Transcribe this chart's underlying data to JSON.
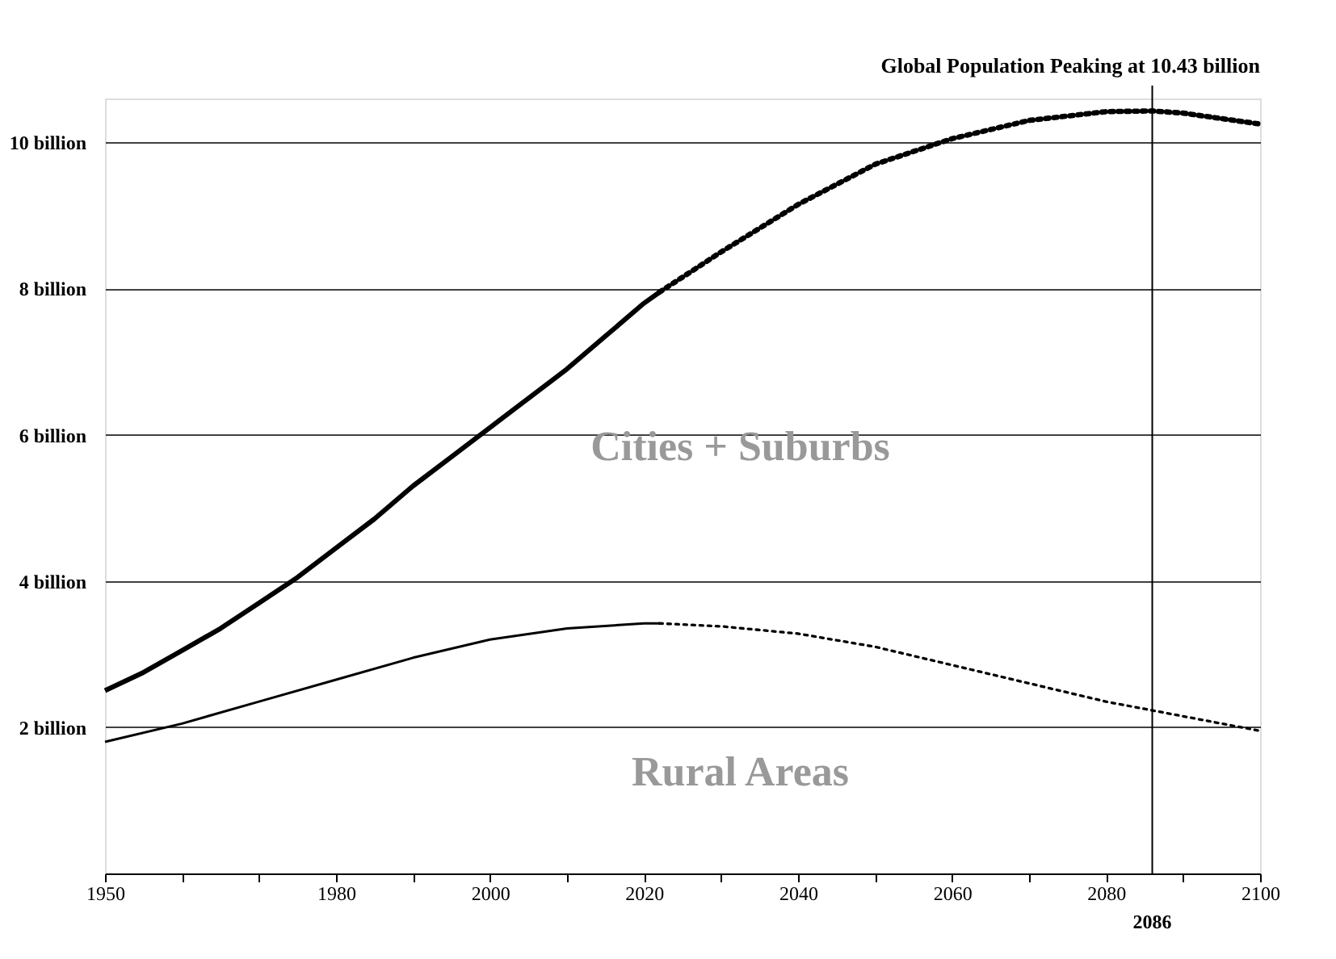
{
  "chart_data": {
    "type": "line",
    "title": "Global Population Peaking at 10.43 billion",
    "xlim": [
      1950,
      2100
    ],
    "xticks": [
      1950,
      {
        "value": 1960,
        "label": null
      },
      {
        "value": 1970,
        "label": null
      },
      1980,
      {
        "value": 1990,
        "label": null
      },
      2000,
      {
        "value": 2010,
        "label": null
      },
      2020,
      {
        "value": 2030,
        "label": null
      },
      2040,
      {
        "value": 2050,
        "label": null
      },
      2060,
      {
        "value": 2070,
        "label": null
      },
      2080,
      {
        "value": 2090,
        "label": null
      },
      2100
    ],
    "ylim": [
      0,
      10.6
    ],
    "yticks": [
      {
        "value": 2,
        "label": "2 billion"
      },
      {
        "value": 4,
        "label": "4 billion"
      },
      {
        "value": 6,
        "label": "6 billion"
      },
      {
        "value": 8,
        "label": "8 billion"
      },
      {
        "value": 10,
        "label": "10 billion"
      }
    ],
    "grid": "y",
    "marker": "none",
    "series": [
      {
        "color": "#000000",
        "line_style": "solid",
        "x": [
          1950,
          1955,
          1960,
          1965,
          1970,
          1975,
          1980,
          1985,
          1990,
          1995,
          2000,
          2005,
          2010,
          2015,
          2020,
          2022
        ],
        "values": [
          2.5,
          2.75,
          3.05,
          3.35,
          3.7,
          4.05,
          4.45,
          4.85,
          5.3,
          5.7,
          6.1,
          6.5,
          6.9,
          7.35,
          7.8,
          7.95
        ]
      },
      {
        "color": "#000000",
        "line_style": "dotted",
        "x": [
          2022,
          2030,
          2040,
          2050,
          2060,
          2070,
          2080,
          2086,
          2090,
          2100
        ],
        "values": [
          7.95,
          8.5,
          9.15,
          9.7,
          10.05,
          10.3,
          10.42,
          10.43,
          10.4,
          10.25
        ]
      },
      {
        "color": "#000000",
        "line_style": "solid",
        "x": [
          1950,
          1960,
          1970,
          1980,
          1990,
          2000,
          2010,
          2020,
          2022
        ],
        "values": [
          1.8,
          2.05,
          2.35,
          2.65,
          2.95,
          3.2,
          3.35,
          3.42,
          3.42
        ]
      },
      {
        "color": "#000000",
        "line_style": "dotted",
        "x": [
          2022,
          2030,
          2040,
          2050,
          2060,
          2070,
          2080,
          2090,
          2100
        ],
        "values": [
          3.42,
          3.38,
          3.28,
          3.1,
          2.85,
          2.6,
          2.35,
          2.15,
          1.95
        ]
      }
    ],
    "ref_lines": [
      {
        "axis": "x",
        "value": 2086,
        "label": "2086",
        "color": "#000000",
        "line_style": "solid"
      }
    ],
    "annotations": [
      "Cities + Suburbs",
      "Rural Areas"
    ]
  }
}
